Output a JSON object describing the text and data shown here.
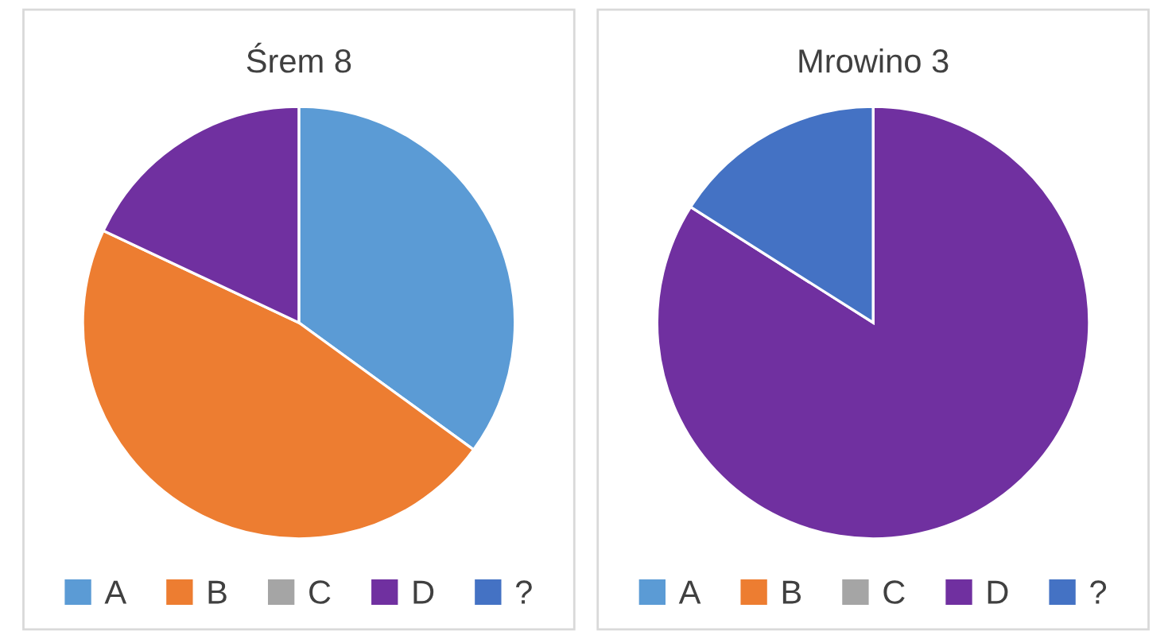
{
  "chart_data": [
    {
      "type": "pie",
      "title": "Śrem 8",
      "categories": [
        "A",
        "B",
        "C",
        "D",
        "?"
      ],
      "values": [
        35,
        47,
        0,
        18,
        0
      ],
      "colors": [
        "#5b9bd5",
        "#ed7d31",
        "#a5a5a5",
        "#7030a0",
        "#4472c4"
      ],
      "legend": "bottom"
    },
    {
      "type": "pie",
      "title": "Mrowino 3",
      "categories": [
        "A",
        "B",
        "C",
        "D",
        "?"
      ],
      "values": [
        0,
        0,
        0,
        84,
        16
      ],
      "colors": [
        "#5b9bd5",
        "#ed7d31",
        "#a5a5a5",
        "#7030a0",
        "#4472c4"
      ],
      "legend": "bottom"
    }
  ]
}
